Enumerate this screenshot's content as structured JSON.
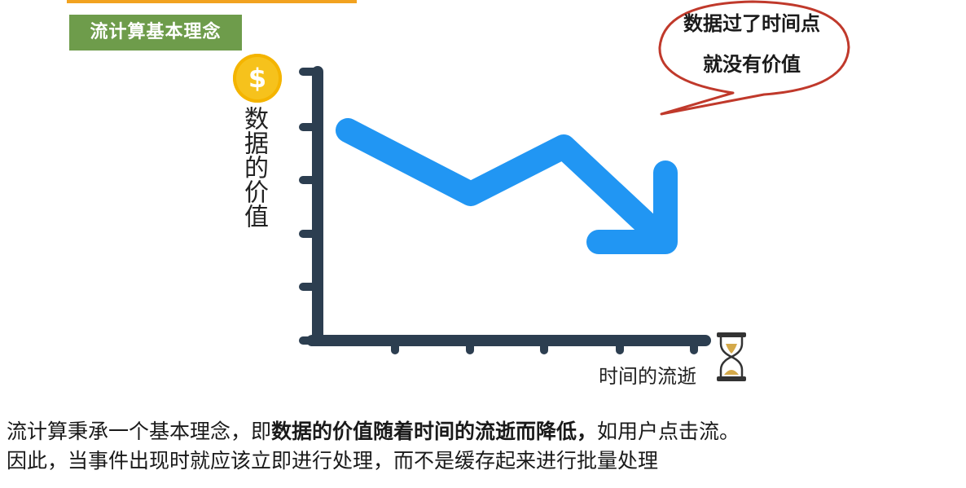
{
  "section_title": "流计算基本理念",
  "coin_symbol": "$",
  "y_axis_label": "数据的价值",
  "x_axis_label": "时间的流逝",
  "speech_bubble": {
    "line1": "数据过了时间点",
    "line2": "就没有价值"
  },
  "caption": {
    "line1_before": "流计算秉承一个基本理念，即",
    "line1_bold": "数据的价值随着时间的流逝而降低，",
    "line1_after": "如用户点击流。",
    "line2": "因此，当事件出现时就应该立即进行处理，而不是缓存起来进行批量处理"
  },
  "colors": {
    "tag_green": "#6e9c4b",
    "accent_orange": "#f2a21f",
    "coin_gold": "#f6c21c",
    "axis_navy": "#2c3e50",
    "arrow_blue": "#2196f3",
    "bubble_red": "#c0392b"
  },
  "icons": [
    "dollar-coin-icon",
    "hourglass-icon",
    "downtrend-arrow-icon"
  ]
}
